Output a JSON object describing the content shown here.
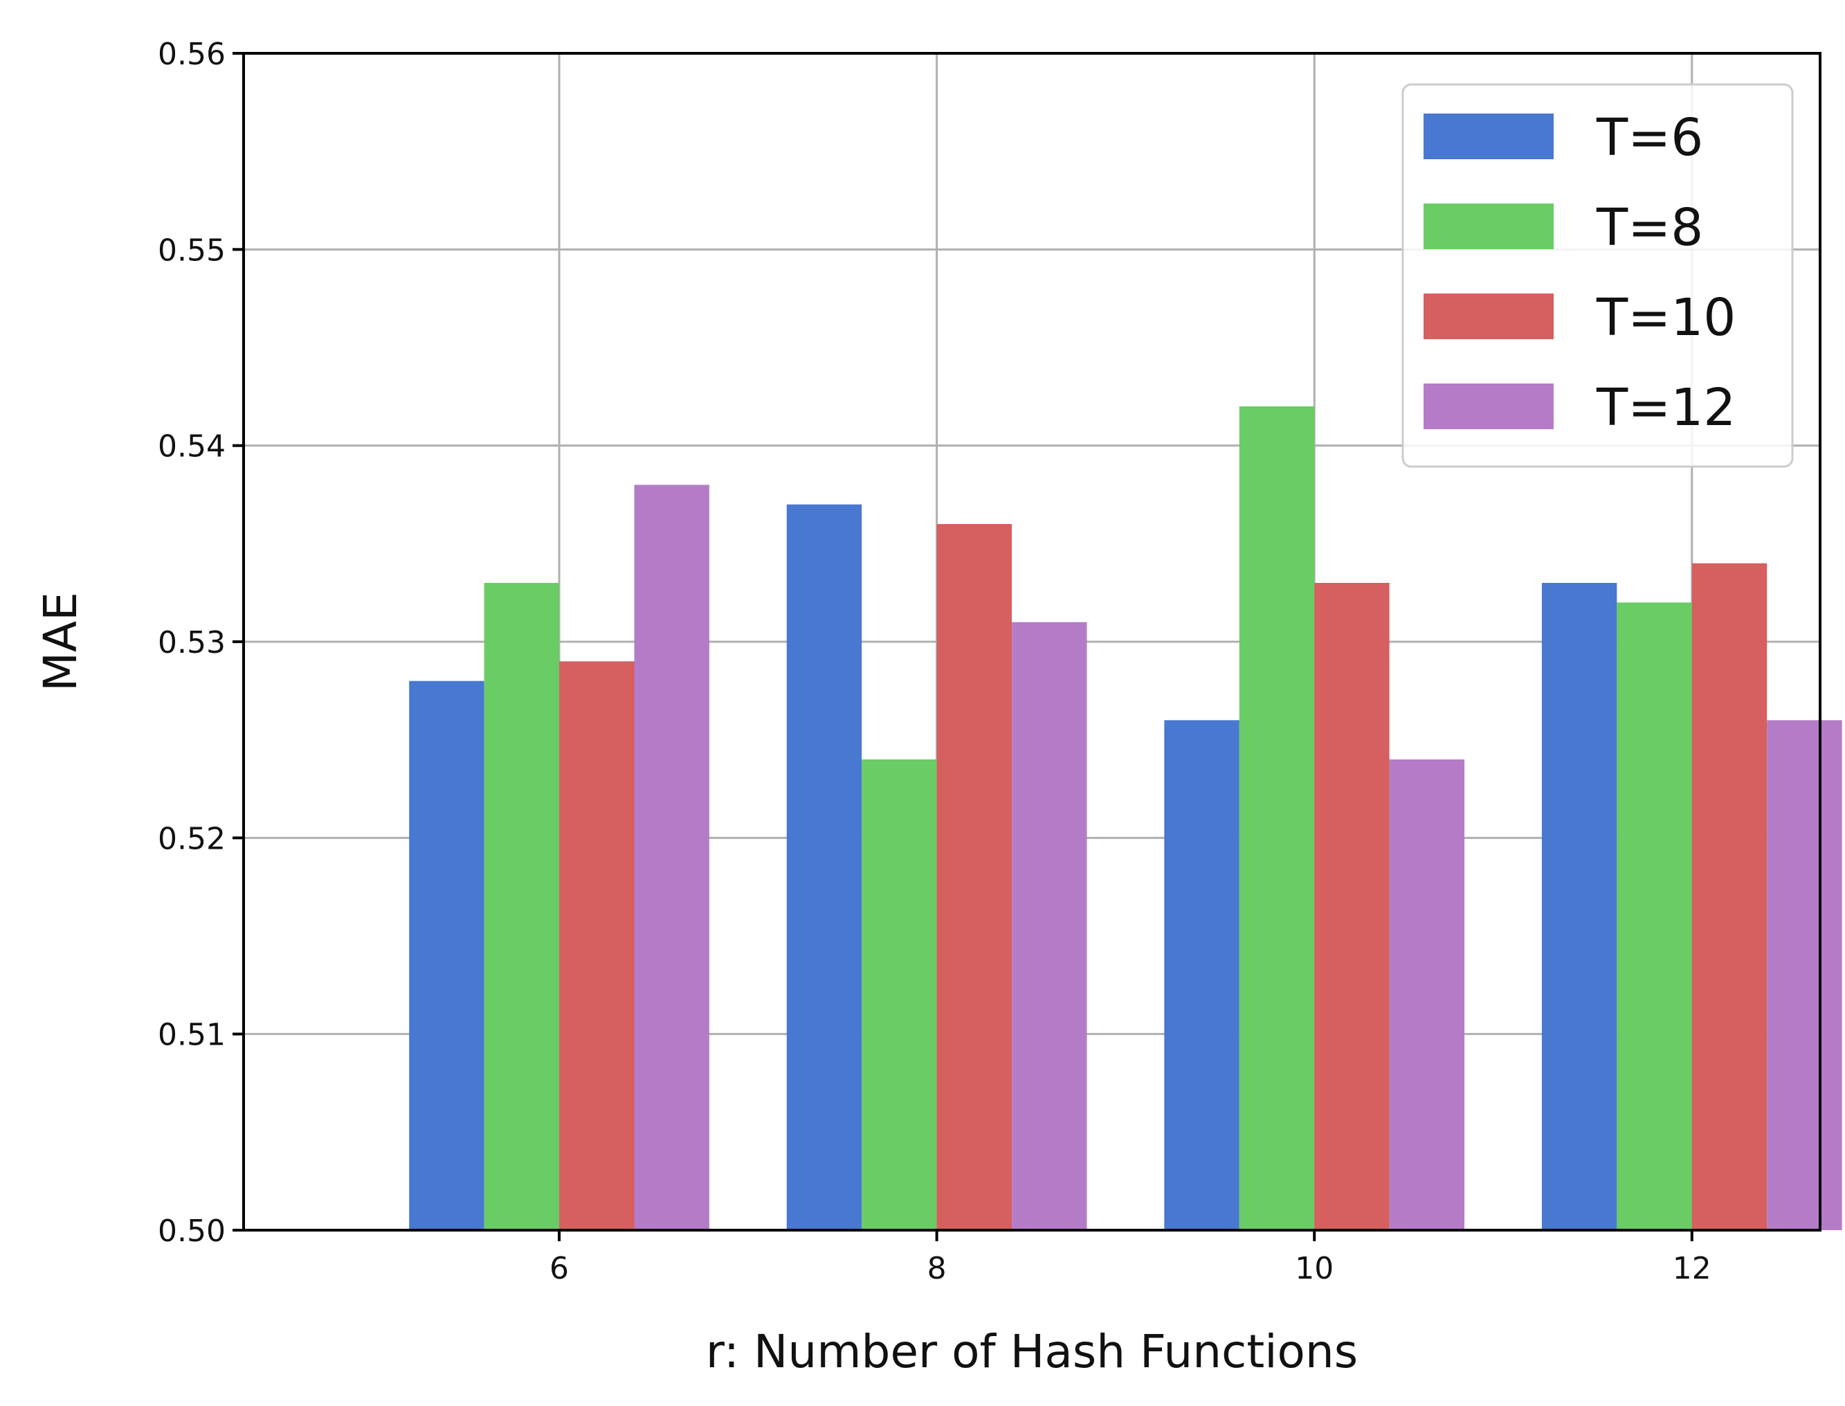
{
  "chart_data": {
    "type": "bar",
    "title": "",
    "xlabel": "r: Number of Hash Functions",
    "ylabel": "MAE",
    "categories": [
      "6",
      "8",
      "10",
      "12"
    ],
    "ylim": [
      0.5,
      0.56
    ],
    "yticks": [
      "0.50",
      "0.51",
      "0.52",
      "0.53",
      "0.54",
      "0.55",
      "0.56"
    ],
    "grid": true,
    "legend_position": "top-right",
    "series": [
      {
        "name": "T=6",
        "color": "#4878cf",
        "values": [
          0.528,
          0.537,
          0.526,
          0.533
        ]
      },
      {
        "name": "T=8",
        "color": "#6acc65",
        "values": [
          0.533,
          0.524,
          0.542,
          0.532
        ]
      },
      {
        "name": "T=10",
        "color": "#d65f5f",
        "values": [
          0.529,
          0.536,
          0.533,
          0.534
        ]
      },
      {
        "name": "T=12",
        "color": "#b47cc7",
        "values": [
          0.538,
          0.531,
          0.524,
          0.526
        ]
      }
    ]
  }
}
